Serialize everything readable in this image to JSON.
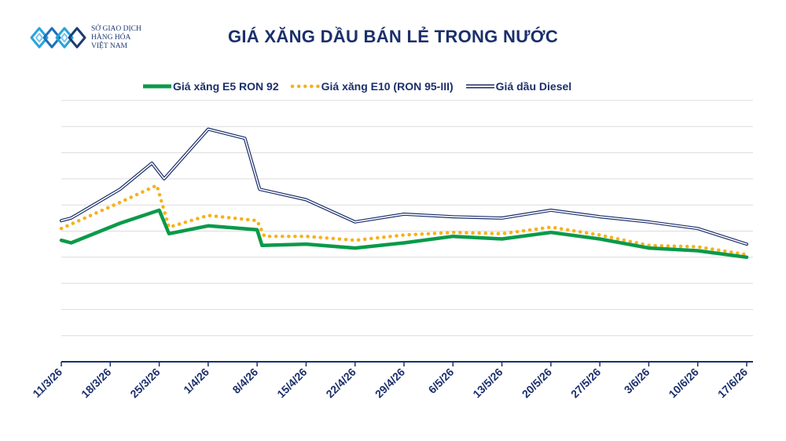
{
  "logo": {
    "line1": "SỞ GIAO DỊCH",
    "line2": "HÀNG HÓA",
    "line3": "VIỆT NAM",
    "color": "#1f3b73"
  },
  "colors": {
    "e5": "#0a9a4a",
    "e10": "#f5b21c",
    "diesel": "#1b2f6b",
    "grid": "#dcdcdc",
    "title": "#1b2f6b"
  },
  "chart_data": {
    "type": "line",
    "title": "GIÁ XĂNG DẦU BÁN LẺ TRONG NƯỚC",
    "xlabel": "",
    "ylabel": "",
    "ylim": [
      0,
      100
    ],
    "grid": true,
    "legend_position": "top",
    "categories": [
      "11/3/26",
      "18/3/26",
      "25/3/26",
      "1/4/26",
      "8/4/26",
      "15/4/26",
      "22/4/26",
      "29/4/26",
      "6/5/26",
      "13/5/26",
      "20/5/26",
      "27/5/26",
      "3/6/26",
      "10/6/26",
      "17/6/26"
    ],
    "series": [
      {
        "name": "Giá xăng E5 RON 92",
        "style": "solid-thick",
        "color": "#0a9a4a",
        "points": [
          [
            0,
            46.5
          ],
          [
            0.2,
            45.5
          ],
          [
            1.2,
            53
          ],
          [
            2,
            58
          ],
          [
            2.2,
            49
          ],
          [
            3,
            52
          ],
          [
            4,
            50.5
          ],
          [
            4.1,
            44.5
          ],
          [
            5,
            45
          ],
          [
            6,
            43.5
          ],
          [
            7,
            45.5
          ],
          [
            8,
            48
          ],
          [
            9,
            47
          ],
          [
            10,
            49.5
          ],
          [
            11,
            47
          ],
          [
            12,
            43.5
          ],
          [
            13,
            42.5
          ],
          [
            14,
            40
          ]
        ]
      },
      {
        "name": "Giá xăng E10 (RON 95-III)",
        "style": "dotted",
        "color": "#f5b21c",
        "points": [
          [
            0,
            51
          ],
          [
            1.2,
            61
          ],
          [
            1.95,
            67.5
          ],
          [
            2.2,
            51.5
          ],
          [
            3,
            56
          ],
          [
            4,
            54
          ],
          [
            4.15,
            48
          ],
          [
            5,
            48
          ],
          [
            6,
            46.5
          ],
          [
            7,
            48.5
          ],
          [
            8,
            49.5
          ],
          [
            9,
            49
          ],
          [
            10,
            51.5
          ],
          [
            11,
            48.5
          ],
          [
            12,
            44.5
          ],
          [
            13,
            44
          ],
          [
            14,
            41
          ]
        ]
      },
      {
        "name": "Giá dầu Diesel",
        "style": "double-line",
        "color": "#1b2f6b",
        "points": [
          [
            0,
            54
          ],
          [
            0.2,
            55
          ],
          [
            1.2,
            66
          ],
          [
            1.85,
            76
          ],
          [
            2.1,
            70
          ],
          [
            3,
            89
          ],
          [
            3.75,
            85.5
          ],
          [
            4.05,
            66
          ],
          [
            5,
            62
          ],
          [
            6,
            53.5
          ],
          [
            7,
            56.5
          ],
          [
            8,
            55.5
          ],
          [
            9,
            55
          ],
          [
            10,
            58
          ],
          [
            11,
            55.5
          ],
          [
            12,
            53.5
          ],
          [
            13,
            51
          ],
          [
            14,
            45
          ]
        ]
      }
    ]
  }
}
